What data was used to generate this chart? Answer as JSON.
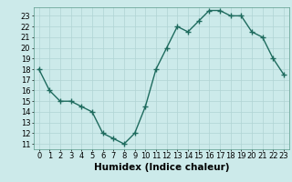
{
  "x": [
    0,
    1,
    2,
    3,
    4,
    5,
    6,
    7,
    8,
    9,
    10,
    11,
    12,
    13,
    14,
    15,
    16,
    17,
    18,
    19,
    20,
    21,
    22,
    23
  ],
  "y": [
    18,
    16,
    15,
    15,
    14.5,
    14,
    12,
    11.5,
    11,
    12,
    14.5,
    18,
    20,
    22,
    21.5,
    22.5,
    23.5,
    23.5,
    23,
    23,
    21.5,
    21,
    19,
    17.5
  ],
  "line_color": "#1e6b5e",
  "marker_color": "#1e6b5e",
  "bg_color": "#cceaea",
  "grid_color": "#b0d4d4",
  "xlabel": "Humidex (Indice chaleur)",
  "xlabel_fontsize": 7.5,
  "ylim": [
    10.5,
    23.8
  ],
  "xlim": [
    -0.5,
    23.5
  ],
  "yticks": [
    11,
    12,
    13,
    14,
    15,
    16,
    17,
    18,
    19,
    20,
    21,
    22,
    23
  ],
  "xticks": [
    0,
    1,
    2,
    3,
    4,
    5,
    6,
    7,
    8,
    9,
    10,
    11,
    12,
    13,
    14,
    15,
    16,
    17,
    18,
    19,
    20,
    21,
    22,
    23
  ],
  "tick_fontsize": 6.0,
  "line_width": 1.0,
  "marker_size": 2.8
}
